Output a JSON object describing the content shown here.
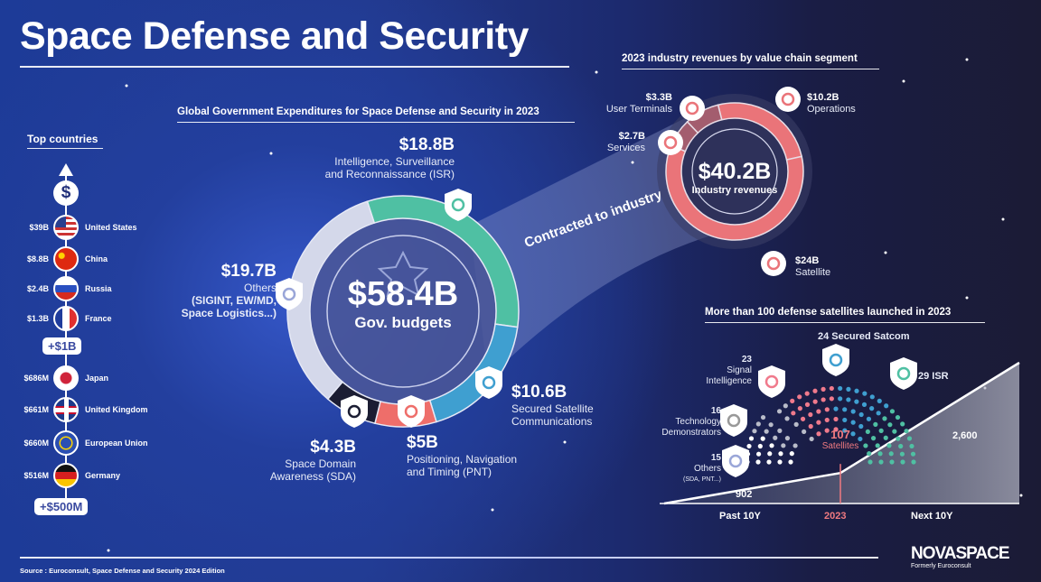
{
  "title": "Space Defense and Security",
  "top_countries": {
    "heading": "Top countries",
    "icon": "dollar-icon",
    "items": [
      {
        "value": "$39B",
        "name": "United States"
      },
      {
        "value": "$8.8B",
        "name": "China"
      },
      {
        "value": "$2.4B",
        "name": "Russia"
      },
      {
        "value": "$1.3B",
        "name": "France"
      },
      {
        "value": "$686M",
        "name": "Japan"
      },
      {
        "value": "$661M",
        "name": "United Kingdom"
      },
      {
        "value": "$660M",
        "name": "European Union"
      },
      {
        "value": "$516M",
        "name": "Germany"
      }
    ],
    "threshold_1": "+$1B",
    "threshold_2": "+$500M"
  },
  "gov": {
    "heading": "Global Government Expenditures for Space Defense and Security in 2023",
    "total": "$58.4B",
    "total_label": "Gov. budgets",
    "isr": {
      "value": "$18.8B",
      "l1": "Intelligence, Surveillance",
      "l2": "and Reconnaissance (ISR)"
    },
    "satcom": {
      "value": "$10.6B",
      "l1": "Secured Satellite",
      "l2": "Communications"
    },
    "pnt": {
      "value": "$5B",
      "l1": "Positioning, Navigation",
      "l2": "and Timing (PNT)"
    },
    "sda": {
      "value": "$4.3B",
      "l1": "Space Domain",
      "l2": "Awareness (SDA)"
    },
    "others": {
      "value": "$19.7B",
      "l1": "Others",
      "l2": "(SIGINT, EW/MD,",
      "l3": "Space Logistics...)"
    }
  },
  "contracted": "Contracted to industry",
  "industry": {
    "heading": "2023 industry revenues by value chain segment",
    "total": "$40.2B",
    "total_label": "Industry revenues",
    "terminals": {
      "value": "$3.3B",
      "label": "User Terminals"
    },
    "services": {
      "value": "$2.7B",
      "label": "Services"
    },
    "operations": {
      "value": "$10.2B",
      "label": "Operations"
    },
    "satellite": {
      "value": "$24B",
      "label": "Satellite"
    }
  },
  "launches": {
    "heading": "More than 100 defense satellites launched in 2023",
    "satcom": "24 Secured Satcom",
    "isr": "29 ISR",
    "sigint_n": "23",
    "sigint_l1": "Signal",
    "sigint_l2": "Intelligence",
    "tech_n": "16",
    "tech_l1": "Technology",
    "tech_l2": "Demonstrators",
    "others_n": "15",
    "others_l1": "Others",
    "others_l2": "(SDA, PNT...)",
    "total_n": "107",
    "total_l": "Satellites",
    "past_value": "902",
    "next_value": "2,600",
    "x_past": "Past 10Y",
    "x_2023": "2023",
    "x_next": "Next 10Y"
  },
  "footer": {
    "source": "Source : Euroconsult, Space Defense and Security 2024 Edition",
    "logo": "NOVASPACE",
    "logo_sub": "Formerly Euroconsult"
  },
  "colors": {
    "isr": "#4fc0a3",
    "satcom": "#3f9fd0",
    "pnt": "#ee6e6a",
    "sda": "#1b1d33",
    "others": "#d4d8ea",
    "ind_main": "#ea7479",
    "ind_dark": "#a35d6e",
    "sigint": "#f07a8c",
    "tech": "#b9bcc9",
    "others_dots": "#ffffff",
    "accent_2023": "#f07a80"
  },
  "chart_data": [
    {
      "type": "pie",
      "title": "Global Government Expenditures for Space Defense and Security in 2023",
      "center_label": "$58.4B Gov. budgets",
      "unit": "$B",
      "categories": [
        "Intelligence, Surveillance and Reconnaissance (ISR)",
        "Secured Satellite Communications",
        "Positioning, Navigation and Timing (PNT)",
        "Space Domain Awareness (SDA)",
        "Others (SIGINT, EW/MD, Space Logistics...)"
      ],
      "values": [
        18.8,
        10.6,
        5,
        4.3,
        19.7
      ]
    },
    {
      "type": "pie",
      "title": "2023 industry revenues by value chain segment",
      "center_label": "$40.2B Industry revenues",
      "unit": "$B",
      "categories": [
        "Operations",
        "Satellite",
        "Services",
        "User Terminals"
      ],
      "values": [
        10.2,
        24,
        2.7,
        3.3
      ]
    },
    {
      "type": "area",
      "title": "More than 100 defense satellites launched in 2023",
      "categories": [
        "Past 10Y",
        "2023",
        "Next 10Y"
      ],
      "values": [
        902,
        null,
        2600
      ]
    },
    {
      "type": "scatter",
      "title": "107 Satellites",
      "categories": [
        "Others (SDA, PNT...)",
        "Technology Demonstrators",
        "Signal Intelligence",
        "Secured Satcom",
        "ISR"
      ],
      "values": [
        15,
        16,
        23,
        24,
        29
      ]
    }
  ]
}
